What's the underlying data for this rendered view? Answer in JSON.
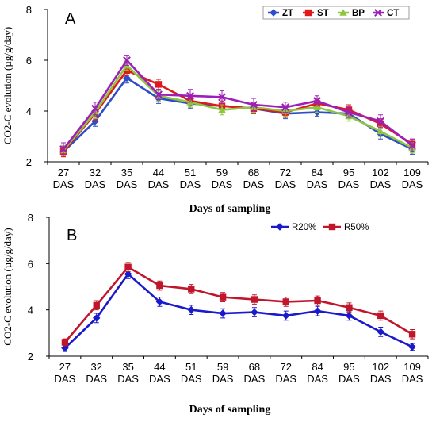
{
  "chart_data": [
    {
      "panel_label": "A",
      "type": "line",
      "categories": [
        "27 DAS",
        "32 DAS",
        "35 DAS",
        "44 DAS",
        "51 DAS",
        "59 DAS",
        "68 DAS",
        "72 DAS",
        "84 DAS",
        "95 DAS",
        "102 DAS",
        "109 DAS"
      ],
      "category_lines": [
        [
          "27",
          "DAS"
        ],
        [
          "32",
          "DAS"
        ],
        [
          "35",
          "DAS"
        ],
        [
          "44",
          "DAS"
        ],
        [
          "51",
          "DAS"
        ],
        [
          "59",
          "DAS"
        ],
        [
          "68",
          "DAS"
        ],
        [
          "72",
          "DAS"
        ],
        [
          "84",
          "DAS"
        ],
        [
          "95",
          "DAS"
        ],
        [
          "102",
          "DAS"
        ],
        [
          "109",
          "DAS"
        ]
      ],
      "xlabel": "Days of sampling",
      "ylabel": "CO2-C evolution (µg/g/day)",
      "ylim": [
        2,
        8
      ],
      "yticks": [
        2,
        4,
        6,
        8
      ],
      "grid": false,
      "legend_position": "top-right",
      "series": [
        {
          "name": "ZT",
          "color": "#2E4DC8",
          "marker": "diamond",
          "values": [
            2.4,
            3.6,
            5.3,
            4.5,
            4.3,
            4.2,
            4.1,
            3.9,
            3.95,
            3.9,
            3.1,
            2.5
          ],
          "errors": [
            0.2,
            0.2,
            0.2,
            0.2,
            0.2,
            0.2,
            0.2,
            0.2,
            0.15,
            0.2,
            0.2,
            0.2
          ]
        },
        {
          "name": "ST",
          "color": "#E01A1A",
          "marker": "square",
          "values": [
            2.4,
            3.9,
            5.6,
            5.05,
            4.4,
            4.2,
            4.1,
            3.95,
            4.3,
            4.05,
            3.5,
            2.7
          ],
          "errors": [
            0.2,
            0.25,
            0.2,
            0.2,
            0.2,
            0.2,
            0.2,
            0.2,
            0.2,
            0.2,
            0.2,
            0.2
          ]
        },
        {
          "name": "BP",
          "color": "#8DC63F",
          "marker": "triangle",
          "values": [
            2.45,
            3.95,
            5.8,
            4.6,
            4.35,
            4.05,
            4.15,
            4.0,
            4.15,
            3.8,
            3.2,
            2.55
          ],
          "errors": [
            0.2,
            0.25,
            0.2,
            0.2,
            0.2,
            0.2,
            0.2,
            0.2,
            0.2,
            0.2,
            0.2,
            0.2
          ]
        },
        {
          "name": "CT",
          "color": "#9B1FB8",
          "marker": "cross",
          "values": [
            2.5,
            4.1,
            6.0,
            4.65,
            4.6,
            4.55,
            4.25,
            4.15,
            4.4,
            3.95,
            3.6,
            2.65
          ],
          "errors": [
            0.25,
            0.25,
            0.2,
            0.2,
            0.25,
            0.25,
            0.25,
            0.2,
            0.2,
            0.2,
            0.25,
            0.25
          ]
        }
      ]
    },
    {
      "panel_label": "B",
      "type": "line",
      "categories": [
        "27 DAS",
        "32 DAS",
        "35 DAS",
        "44 DAS",
        "51 DAS",
        "59 DAS",
        "68 DAS",
        "72 DAS",
        "84 DAS",
        "95 DAS",
        "102 DAS",
        "109 DAS"
      ],
      "category_lines": [
        [
          "27",
          "DAS"
        ],
        [
          "32",
          "DAS"
        ],
        [
          "35",
          "DAS"
        ],
        [
          "44",
          "DAS"
        ],
        [
          "51",
          "DAS"
        ],
        [
          "59",
          "DAS"
        ],
        [
          "68",
          "DAS"
        ],
        [
          "72",
          "DAS"
        ],
        [
          "84",
          "DAS"
        ],
        [
          "95",
          "DAS"
        ],
        [
          "102",
          "DAS"
        ],
        [
          "109",
          "DAS"
        ]
      ],
      "xlabel": "Days of sampling",
      "ylabel": "CO2-C evolution (µg/g/day)",
      "ylim": [
        2,
        8
      ],
      "yticks": [
        2,
        4,
        6,
        8
      ],
      "grid": false,
      "legend_position": "top-right",
      "series": [
        {
          "name": "R20%",
          "color": "#1A1ACB",
          "marker": "diamond",
          "values": [
            2.35,
            3.65,
            5.55,
            4.35,
            4.0,
            3.85,
            3.9,
            3.75,
            3.95,
            3.75,
            3.05,
            2.4
          ],
          "errors": [
            0.15,
            0.2,
            0.2,
            0.2,
            0.2,
            0.2,
            0.2,
            0.2,
            0.2,
            0.2,
            0.2,
            0.15
          ]
        },
        {
          "name": "R50%",
          "color": "#C0162B",
          "marker": "square",
          "values": [
            2.6,
            4.2,
            5.85,
            5.05,
            4.9,
            4.55,
            4.45,
            4.35,
            4.4,
            4.1,
            3.75,
            2.95
          ],
          "errors": [
            0.15,
            0.2,
            0.2,
            0.2,
            0.2,
            0.2,
            0.2,
            0.2,
            0.2,
            0.2,
            0.2,
            0.2
          ]
        }
      ]
    }
  ]
}
